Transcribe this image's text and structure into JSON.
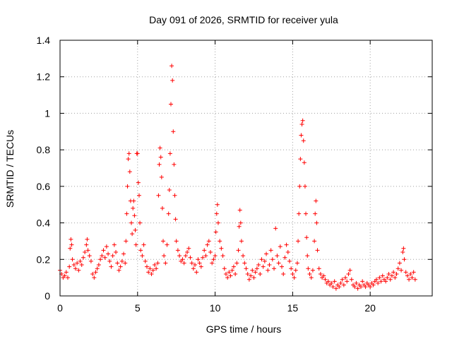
{
  "chart_data": {
    "type": "scatter",
    "title": "Day 091 of 2026, SRMTID for receiver yula",
    "xlabel": "GPS time / hours",
    "ylabel": "SRMTID / TECUs",
    "xlim": [
      0,
      24
    ],
    "ylim": [
      0,
      1.4
    ],
    "xticks": [
      0,
      5,
      10,
      15,
      20
    ],
    "xtick_labels": [
      "0",
      "5",
      "10",
      "15",
      "20"
    ],
    "yticks": [
      0,
      0.2,
      0.4,
      0.6,
      0.8,
      1,
      1.2,
      1.4
    ],
    "ytick_labels": [
      "0",
      "0.2",
      "0.4",
      "0.6",
      "0.8",
      "1",
      "1.2",
      "1.4"
    ],
    "grid": true,
    "marker": "+",
    "colors": {
      "points": "#ff0000",
      "grid": "#a0a0a0",
      "axes": "#000000"
    },
    "series": [
      {
        "name": "SRMTID",
        "points": [
          [
            0.0,
            0.14
          ],
          [
            0.1,
            0.12
          ],
          [
            0.2,
            0.1
          ],
          [
            0.3,
            0.11
          ],
          [
            0.4,
            0.13
          ],
          [
            0.5,
            0.1
          ],
          [
            0.6,
            0.16
          ],
          [
            0.65,
            0.26
          ],
          [
            0.7,
            0.31
          ],
          [
            0.75,
            0.28
          ],
          [
            0.8,
            0.2
          ],
          [
            0.9,
            0.17
          ],
          [
            1.0,
            0.15
          ],
          [
            1.1,
            0.18
          ],
          [
            1.2,
            0.14
          ],
          [
            1.3,
            0.19
          ],
          [
            1.4,
            0.17
          ],
          [
            1.5,
            0.21
          ],
          [
            1.6,
            0.24
          ],
          [
            1.7,
            0.28
          ],
          [
            1.75,
            0.31
          ],
          [
            1.8,
            0.25
          ],
          [
            1.9,
            0.22
          ],
          [
            2.0,
            0.19
          ],
          [
            2.1,
            0.12
          ],
          [
            2.2,
            0.1
          ],
          [
            2.3,
            0.13
          ],
          [
            2.4,
            0.15
          ],
          [
            2.5,
            0.17
          ],
          [
            2.6,
            0.2
          ],
          [
            2.7,
            0.22
          ],
          [
            2.8,
            0.25
          ],
          [
            2.9,
            0.21
          ],
          [
            3.0,
            0.27
          ],
          [
            3.1,
            0.23
          ],
          [
            3.2,
            0.19
          ],
          [
            3.3,
            0.16
          ],
          [
            3.4,
            0.22
          ],
          [
            3.5,
            0.28
          ],
          [
            3.6,
            0.24
          ],
          [
            3.7,
            0.18
          ],
          [
            3.8,
            0.14
          ],
          [
            3.9,
            0.16
          ],
          [
            4.0,
            0.19
          ],
          [
            4.1,
            0.23
          ],
          [
            4.2,
            0.18
          ],
          [
            4.25,
            0.3
          ],
          [
            4.3,
            0.45
          ],
          [
            4.35,
            0.6
          ],
          [
            4.4,
            0.75
          ],
          [
            4.45,
            0.78
          ],
          [
            4.5,
            0.68
          ],
          [
            4.55,
            0.52
          ],
          [
            4.6,
            0.4
          ],
          [
            4.65,
            0.34
          ],
          [
            4.7,
            0.48
          ],
          [
            4.75,
            0.52
          ],
          [
            4.8,
            0.44
          ],
          [
            4.85,
            0.36
          ],
          [
            4.9,
            0.28
          ],
          [
            4.95,
            0.78
          ],
          [
            5.0,
            0.78
          ],
          [
            5.05,
            0.62
          ],
          [
            5.1,
            0.55
          ],
          [
            5.15,
            0.4
          ],
          [
            5.2,
            0.25
          ],
          [
            5.3,
            0.22
          ],
          [
            5.4,
            0.28
          ],
          [
            5.5,
            0.19
          ],
          [
            5.6,
            0.16
          ],
          [
            5.7,
            0.13
          ],
          [
            5.8,
            0.15
          ],
          [
            5.9,
            0.12
          ],
          [
            6.0,
            0.14
          ],
          [
            6.1,
            0.17
          ],
          [
            6.2,
            0.15
          ],
          [
            6.3,
            0.18
          ],
          [
            6.35,
            0.55
          ],
          [
            6.4,
            0.72
          ],
          [
            6.45,
            0.81
          ],
          [
            6.5,
            0.76
          ],
          [
            6.55,
            0.65
          ],
          [
            6.6,
            0.48
          ],
          [
            6.65,
            0.3
          ],
          [
            6.7,
            0.22
          ],
          [
            6.8,
            0.18
          ],
          [
            6.9,
            0.28
          ],
          [
            7.0,
            0.45
          ],
          [
            7.05,
            0.58
          ],
          [
            7.1,
            0.78
          ],
          [
            7.15,
            1.05
          ],
          [
            7.2,
            1.26
          ],
          [
            7.25,
            1.18
          ],
          [
            7.3,
            0.9
          ],
          [
            7.35,
            0.72
          ],
          [
            7.4,
            0.55
          ],
          [
            7.45,
            0.42
          ],
          [
            7.5,
            0.3
          ],
          [
            7.6,
            0.25
          ],
          [
            7.7,
            0.22
          ],
          [
            7.8,
            0.19
          ],
          [
            7.9,
            0.2
          ],
          [
            8.0,
            0.18
          ],
          [
            8.1,
            0.22
          ],
          [
            8.2,
            0.24
          ],
          [
            8.3,
            0.26
          ],
          [
            8.4,
            0.21
          ],
          [
            8.5,
            0.18
          ],
          [
            8.6,
            0.15
          ],
          [
            8.7,
            0.17
          ],
          [
            8.8,
            0.13
          ],
          [
            8.9,
            0.2
          ],
          [
            9.0,
            0.18
          ],
          [
            9.1,
            0.16
          ],
          [
            9.2,
            0.21
          ],
          [
            9.3,
            0.25
          ],
          [
            9.4,
            0.22
          ],
          [
            9.5,
            0.28
          ],
          [
            9.6,
            0.3
          ],
          [
            9.7,
            0.24
          ],
          [
            9.8,
            0.18
          ],
          [
            9.9,
            0.2
          ],
          [
            10.0,
            0.22
          ],
          [
            10.05,
            0.35
          ],
          [
            10.1,
            0.45
          ],
          [
            10.15,
            0.5
          ],
          [
            10.2,
            0.4
          ],
          [
            10.3,
            0.3
          ],
          [
            10.4,
            0.26
          ],
          [
            10.5,
            0.22
          ],
          [
            10.6,
            0.15
          ],
          [
            10.7,
            0.12
          ],
          [
            10.8,
            0.1
          ],
          [
            10.9,
            0.13
          ],
          [
            11.0,
            0.11
          ],
          [
            11.1,
            0.14
          ],
          [
            11.2,
            0.16
          ],
          [
            11.3,
            0.12
          ],
          [
            11.4,
            0.18
          ],
          [
            11.5,
            0.25
          ],
          [
            11.55,
            0.38
          ],
          [
            11.6,
            0.47
          ],
          [
            11.65,
            0.4
          ],
          [
            11.7,
            0.3
          ],
          [
            11.8,
            0.22
          ],
          [
            11.9,
            0.18
          ],
          [
            12.0,
            0.15
          ],
          [
            12.1,
            0.12
          ],
          [
            12.2,
            0.09
          ],
          [
            12.3,
            0.11
          ],
          [
            12.4,
            0.14
          ],
          [
            12.5,
            0.1
          ],
          [
            12.6,
            0.13
          ],
          [
            12.7,
            0.15
          ],
          [
            12.8,
            0.17
          ],
          [
            12.9,
            0.12
          ],
          [
            13.0,
            0.2
          ],
          [
            13.1,
            0.16
          ],
          [
            13.2,
            0.19
          ],
          [
            13.3,
            0.23
          ],
          [
            13.4,
            0.14
          ],
          [
            13.5,
            0.17
          ],
          [
            13.6,
            0.25
          ],
          [
            13.7,
            0.2
          ],
          [
            13.8,
            0.15
          ],
          [
            13.9,
            0.37
          ],
          [
            14.0,
            0.22
          ],
          [
            14.1,
            0.18
          ],
          [
            14.2,
            0.27
          ],
          [
            14.3,
            0.16
          ],
          [
            14.4,
            0.12
          ],
          [
            14.5,
            0.21
          ],
          [
            14.6,
            0.28
          ],
          [
            14.7,
            0.24
          ],
          [
            14.8,
            0.19
          ],
          [
            14.9,
            0.15
          ],
          [
            15.0,
            0.12
          ],
          [
            15.1,
            0.1
          ],
          [
            15.2,
            0.14
          ],
          [
            15.3,
            0.18
          ],
          [
            15.35,
            0.3
          ],
          [
            15.4,
            0.45
          ],
          [
            15.45,
            0.6
          ],
          [
            15.5,
            0.75
          ],
          [
            15.55,
            0.88
          ],
          [
            15.6,
            0.94
          ],
          [
            15.65,
            0.96
          ],
          [
            15.7,
            0.85
          ],
          [
            15.75,
            0.73
          ],
          [
            15.8,
            0.6
          ],
          [
            15.85,
            0.45
          ],
          [
            15.9,
            0.32
          ],
          [
            15.95,
            0.22
          ],
          [
            16.0,
            0.15
          ],
          [
            16.1,
            0.12
          ],
          [
            16.2,
            0.1
          ],
          [
            16.3,
            0.14
          ],
          [
            16.4,
            0.3
          ],
          [
            16.45,
            0.45
          ],
          [
            16.5,
            0.52
          ],
          [
            16.55,
            0.4
          ],
          [
            16.6,
            0.25
          ],
          [
            16.7,
            0.15
          ],
          [
            16.8,
            0.12
          ],
          [
            16.9,
            0.1
          ],
          [
            17.0,
            0.11
          ],
          [
            17.1,
            0.09
          ],
          [
            17.2,
            0.07
          ],
          [
            17.3,
            0.08
          ],
          [
            17.4,
            0.06
          ],
          [
            17.5,
            0.07
          ],
          [
            17.6,
            0.05
          ],
          [
            17.7,
            0.08
          ],
          [
            17.8,
            0.04
          ],
          [
            17.9,
            0.06
          ],
          [
            18.0,
            0.05
          ],
          [
            18.1,
            0.07
          ],
          [
            18.2,
            0.09
          ],
          [
            18.3,
            0.06
          ],
          [
            18.4,
            0.1
          ],
          [
            18.5,
            0.08
          ],
          [
            18.6,
            0.12
          ],
          [
            18.7,
            0.14
          ],
          [
            18.8,
            0.09
          ],
          [
            18.9,
            0.06
          ],
          [
            19.0,
            0.05
          ],
          [
            19.1,
            0.07
          ],
          [
            19.2,
            0.04
          ],
          [
            19.3,
            0.06
          ],
          [
            19.4,
            0.05
          ],
          [
            19.5,
            0.08
          ],
          [
            19.6,
            0.06
          ],
          [
            19.7,
            0.05
          ],
          [
            19.8,
            0.07
          ],
          [
            19.9,
            0.06
          ],
          [
            20.0,
            0.05
          ],
          [
            20.1,
            0.07
          ],
          [
            20.2,
            0.06
          ],
          [
            20.3,
            0.08
          ],
          [
            20.4,
            0.09
          ],
          [
            20.5,
            0.07
          ],
          [
            20.6,
            0.1
          ],
          [
            20.7,
            0.08
          ],
          [
            20.8,
            0.11
          ],
          [
            20.9,
            0.09
          ],
          [
            21.0,
            0.08
          ],
          [
            21.1,
            0.1
          ],
          [
            21.2,
            0.12
          ],
          [
            21.3,
            0.09
          ],
          [
            21.4,
            0.11
          ],
          [
            21.5,
            0.13
          ],
          [
            21.6,
            0.1
          ],
          [
            21.7,
            0.12
          ],
          [
            21.8,
            0.15
          ],
          [
            21.9,
            0.18
          ],
          [
            22.0,
            0.14
          ],
          [
            22.1,
            0.24
          ],
          [
            22.15,
            0.26
          ],
          [
            22.2,
            0.2
          ],
          [
            22.3,
            0.13
          ],
          [
            22.4,
            0.11
          ],
          [
            22.5,
            0.09
          ],
          [
            22.6,
            0.12
          ],
          [
            22.7,
            0.1
          ],
          [
            22.8,
            0.13
          ],
          [
            22.9,
            0.09
          ]
        ]
      }
    ]
  }
}
